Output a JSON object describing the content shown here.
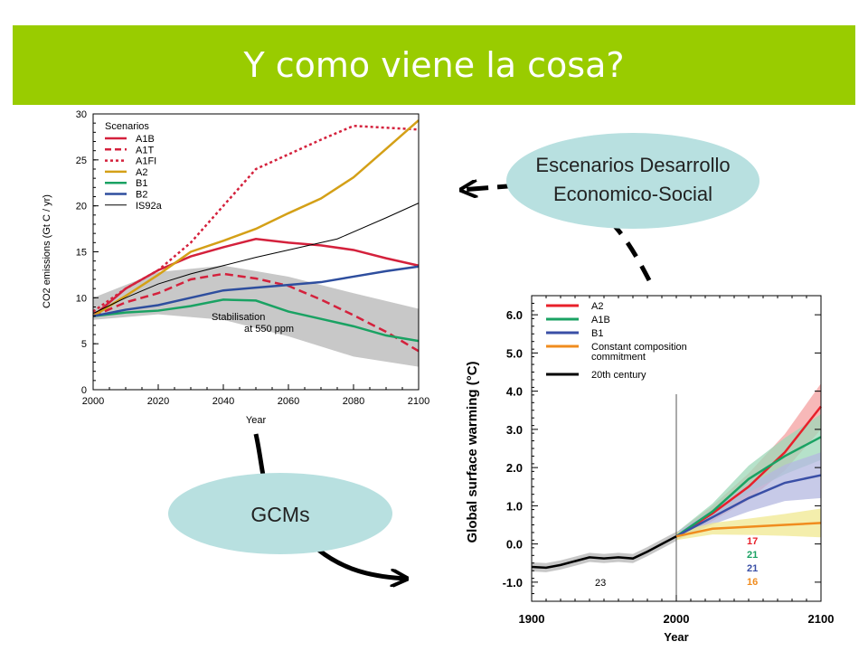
{
  "slide": {
    "title": "Y como viene la cosa?",
    "bubble_top_line1": "Escenarios Desarrollo",
    "bubble_top_line2": "Economico-Social",
    "bubble_bottom": "GCMs",
    "colors": {
      "title_bar": "#99cc00",
      "bubble": "#b8e0e0",
      "arrow": "#000000"
    }
  },
  "chart_data": [
    {
      "type": "line",
      "title": "",
      "xlabel": "Year",
      "ylabel": "CO2 emissions (Gt C / yr)",
      "xlim": [
        2000,
        2100
      ],
      "ylim": [
        0,
        30
      ],
      "xticks": [
        "2000",
        "2020",
        "2040",
        "2060",
        "2080",
        "2100"
      ],
      "yticks": [
        "0",
        "5",
        "10",
        "15",
        "20",
        "25",
        "30"
      ],
      "legend_title": "Scenarios",
      "legend_position": "top-left",
      "band": {
        "label_line1": "Stabilisation",
        "label_line2": "at 550 ppm",
        "color": "#c8c8c8",
        "upper": [
          [
            2000,
            10
          ],
          [
            2020,
            12.8
          ],
          [
            2040,
            13.5
          ],
          [
            2060,
            12.3
          ],
          [
            2080,
            10.5
          ],
          [
            2100,
            8.8
          ]
        ],
        "lower": [
          [
            2000,
            7.6
          ],
          [
            2020,
            8.2
          ],
          [
            2040,
            7.6
          ],
          [
            2060,
            5.8
          ],
          [
            2080,
            3.6
          ],
          [
            2100,
            2.5
          ]
        ]
      },
      "series": [
        {
          "name": "A1B",
          "color": "#d4213c",
          "dash": "solid",
          "points": [
            [
              2000,
              8
            ],
            [
              2010,
              11
            ],
            [
              2020,
              13
            ],
            [
              2030,
              14.5
            ],
            [
              2040,
              15.5
            ],
            [
              2050,
              16.4
            ],
            [
              2060,
              16
            ],
            [
              2070,
              15.7
            ],
            [
              2080,
              15.2
            ],
            [
              2090,
              14.3
            ],
            [
              2100,
              13.5
            ]
          ]
        },
        {
          "name": "A1T",
          "color": "#d4213c",
          "dash": "dashed",
          "points": [
            [
              2000,
              8
            ],
            [
              2010,
              9.5
            ],
            [
              2020,
              10.5
            ],
            [
              2030,
              12
            ],
            [
              2040,
              12.6
            ],
            [
              2050,
              12.1
            ],
            [
              2060,
              11.3
            ],
            [
              2070,
              9.8
            ],
            [
              2080,
              8.1
            ],
            [
              2090,
              6.3
            ],
            [
              2100,
              4.2
            ]
          ]
        },
        {
          "name": "A1FI",
          "color": "#d4213c",
          "dash": "dotted",
          "points": [
            [
              2000,
              8.5
            ],
            [
              2010,
              11
            ],
            [
              2020,
              13
            ],
            [
              2030,
              16
            ],
            [
              2040,
              20
            ],
            [
              2050,
              24
            ],
            [
              2060,
              25.6
            ],
            [
              2070,
              27.2
            ],
            [
              2080,
              28.7
            ],
            [
              2090,
              28.5
            ],
            [
              2100,
              28.3
            ]
          ]
        },
        {
          "name": "A2",
          "color": "#d4a017",
          "dash": "solid",
          "points": [
            [
              2000,
              8
            ],
            [
              2010,
              10.2
            ],
            [
              2020,
              12.5
            ],
            [
              2030,
              15
            ],
            [
              2040,
              16.2
            ],
            [
              2050,
              17.5
            ],
            [
              2060,
              19.2
            ],
            [
              2070,
              20.8
            ],
            [
              2080,
              23.1
            ],
            [
              2090,
              26.2
            ],
            [
              2100,
              29.3
            ]
          ]
        },
        {
          "name": "B1",
          "color": "#1aa263",
          "dash": "solid",
          "points": [
            [
              2000,
              8
            ],
            [
              2010,
              8.4
            ],
            [
              2020,
              8.6
            ],
            [
              2030,
              9.1
            ],
            [
              2040,
              9.8
            ],
            [
              2050,
              9.7
            ],
            [
              2060,
              8.5
            ],
            [
              2070,
              7.7
            ],
            [
              2080,
              6.9
            ],
            [
              2090,
              5.9
            ],
            [
              2100,
              5.3
            ]
          ]
        },
        {
          "name": "B2",
          "color": "#2e4e9e",
          "dash": "solid",
          "points": [
            [
              2000,
              8
            ],
            [
              2010,
              8.7
            ],
            [
              2020,
              9.2
            ],
            [
              2030,
              10
            ],
            [
              2040,
              10.8
            ],
            [
              2050,
              11.1
            ],
            [
              2060,
              11.4
            ],
            [
              2070,
              11.7
            ],
            [
              2080,
              12.3
            ],
            [
              2090,
              12.9
            ],
            [
              2100,
              13.4
            ]
          ]
        },
        {
          "name": "IS92a",
          "color": "#000000",
          "dash": "thin",
          "points": [
            [
              2000,
              8.3
            ],
            [
              2010,
              10
            ],
            [
              2020,
              11.5
            ],
            [
              2030,
              12.6
            ],
            [
              2040,
              13.5
            ],
            [
              2050,
              14.4
            ],
            [
              2060,
              15.2
            ],
            [
              2075,
              16.4
            ],
            [
              2090,
              18.7
            ],
            [
              2100,
              20.3
            ]
          ]
        }
      ]
    },
    {
      "type": "line",
      "title": "",
      "xlabel": "Year",
      "ylabel": "Global surface warming (°C)",
      "xlim": [
        1900,
        2100
      ],
      "ylim": [
        -1.5,
        6.5
      ],
      "xticks": [
        "1900",
        "2000",
        "2100"
      ],
      "yticks": [
        "-1.0",
        "0.0",
        "1.0",
        "2.0",
        "3.0",
        "4.0",
        "5.0",
        "6.0"
      ],
      "legend_position": "top-left",
      "model_counts": [
        {
          "label": "23",
          "color": "#000000"
        },
        {
          "label": "17",
          "color": "#e8202a"
        },
        {
          "label": "21",
          "color": "#1aa263"
        },
        {
          "label": "21",
          "color": "#3a4fa6"
        },
        {
          "label": "16",
          "color": "#f08c1e"
        }
      ],
      "series": [
        {
          "name": "A2",
          "color": "#e8202a",
          "band_color": "#f4a0a0",
          "points": [
            [
              2000,
              0.2
            ],
            [
              2025,
              0.8
            ],
            [
              2050,
              1.5
            ],
            [
              2075,
              2.4
            ],
            [
              2100,
              3.6
            ]
          ]
        },
        {
          "name": "A1B",
          "color": "#1aa263",
          "band_color": "#9ed8b8",
          "points": [
            [
              2000,
              0.2
            ],
            [
              2025,
              0.85
            ],
            [
              2050,
              1.7
            ],
            [
              2075,
              2.3
            ],
            [
              2100,
              2.8
            ]
          ]
        },
        {
          "name": "B1",
          "color": "#3a4fa6",
          "band_color": "#b4b8e0",
          "points": [
            [
              2000,
              0.2
            ],
            [
              2025,
              0.7
            ],
            [
              2050,
              1.2
            ],
            [
              2075,
              1.6
            ],
            [
              2100,
              1.8
            ]
          ]
        },
        {
          "name": "Constant composition commitment",
          "color": "#f08c1e",
          "band_color": "#f0e890",
          "points": [
            [
              2000,
              0.2
            ],
            [
              2025,
              0.4
            ],
            [
              2050,
              0.45
            ],
            [
              2075,
              0.5
            ],
            [
              2100,
              0.55
            ]
          ]
        },
        {
          "name": "20th century",
          "color": "#000000",
          "band_color": "#b4b4b4",
          "points": [
            [
              1900,
              -0.6
            ],
            [
              1910,
              -0.62
            ],
            [
              1920,
              -0.55
            ],
            [
              1930,
              -0.45
            ],
            [
              1940,
              -0.35
            ],
            [
              1950,
              -0.38
            ],
            [
              1960,
              -0.35
            ],
            [
              1970,
              -0.38
            ],
            [
              1980,
              -0.2
            ],
            [
              1990,
              0.0
            ],
            [
              2000,
              0.2
            ]
          ]
        }
      ]
    }
  ]
}
